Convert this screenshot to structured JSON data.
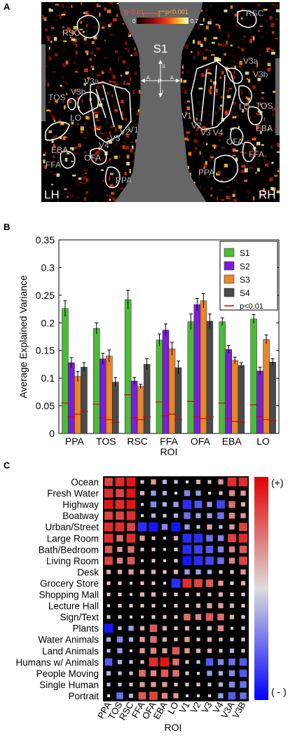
{
  "panel_a": {
    "letter": "A",
    "subject": "S1",
    "colorbar": {
      "min": "0",
      "max": "0.7",
      "p_low": "p<0.01",
      "p_high": "p<0.001"
    },
    "compass": {
      "s": "S",
      "a_left": "A",
      "p": "P",
      "a_right": "A",
      "i": "I"
    },
    "hemi_left": "LH",
    "hemi_right": "RH",
    "left_labels": [
      "RSC",
      "V3a",
      "V3b",
      "TOS",
      "LO",
      "EBA",
      "FFA",
      "OFA",
      "V4",
      "V3",
      "V2",
      "V1",
      "PPA"
    ],
    "right_labels": [
      "RSC",
      "V3a",
      "V3b",
      "TOS",
      "LO",
      "EBA",
      "FFA",
      "OFA",
      "V1",
      "V2",
      "V3",
      "V4",
      "PPA"
    ]
  },
  "chart_data": [
    {
      "type": "bar",
      "panel_letter": "B",
      "categories": [
        "PPA",
        "TOS",
        "RSC",
        "FFA",
        "OFA",
        "EBA",
        "LO"
      ],
      "xlabel": "ROI",
      "ylabel": "Average Explained Variance",
      "ylim": [
        0,
        0.35
      ],
      "yticks": [
        "0",
        "0.05",
        "0.1",
        "0.15",
        "0.2",
        "0.25",
        "0.3",
        "0.35"
      ],
      "legend_position": "top-right",
      "threshold_label": "p<0.01",
      "series": [
        {
          "name": "S1",
          "color": "#4dbb3a",
          "values": [
            0.226,
            0.19,
            0.242,
            0.169,
            0.202,
            0.202,
            0.207
          ],
          "err": [
            0.014,
            0.01,
            0.017,
            0.011,
            0.014,
            0.007,
            0.008
          ],
          "thresholds": [
            0.055,
            0.053,
            0.07,
            0.057,
            0.058,
            0.055,
            0.052
          ]
        },
        {
          "name": "S2",
          "color": "#7b1fd6",
          "values": [
            0.128,
            0.135,
            0.095,
            0.187,
            0.233,
            0.152,
            0.113
          ],
          "err": [
            0.009,
            0.01,
            0.006,
            0.011,
            0.011,
            0.007,
            0.007
          ],
          "thresholds": [
            0.03,
            0.028,
            0.028,
            0.032,
            0.03,
            0.027,
            0.03
          ]
        },
        {
          "name": "S3",
          "color": "#e8862a",
          "values": [
            0.103,
            0.14,
            0.085,
            0.153,
            0.24,
            0.132,
            0.17
          ],
          "err": [
            0.009,
            0.011,
            0.004,
            0.012,
            0.013,
            0.006,
            0.008
          ],
          "thresholds": [
            0.035,
            0.025,
            0.025,
            0.035,
            0.027,
            0.022,
            0.025
          ]
        },
        {
          "name": "S4",
          "color": "#4a4a4a",
          "values": [
            0.12,
            0.093,
            0.125,
            0.119,
            0.203,
            0.123,
            0.129
          ],
          "err": [
            0.008,
            0.008,
            0.01,
            0.012,
            0.013,
            0.005,
            0.006
          ],
          "thresholds": [
            0.04,
            0.02,
            0.03,
            0.025,
            0.03,
            0.02,
            0.023
          ]
        }
      ]
    },
    {
      "type": "heatmap",
      "panel_letter": "C",
      "xlabel": "ROI",
      "colorbar_top": "(+)",
      "colorbar_bottom": "( - )",
      "rows": [
        "Ocean",
        "Fresh Water",
        "Highway",
        "Boatway",
        "Urban/Street",
        "Large Room",
        "Bath/Bedroom",
        "Living Room",
        "Desk",
        "Grocery Store",
        "Shopping Mall",
        "Lecture Hall",
        "Sign/Text",
        "Plants",
        "Water Animals",
        "Land Animals",
        "Humans w/ Animals",
        "People Moving",
        "Single Human",
        "Portrait"
      ],
      "columns": [
        "PPA",
        "TOS",
        "RSC",
        "FFA",
        "OFA",
        "EBA",
        "LO",
        "V1",
        "V2",
        "V3",
        "V4",
        "V3A",
        "V3B"
      ],
      "values": [
        [
          0.7,
          0.8,
          0.9,
          0.1,
          0.3,
          -0.2,
          -0.1,
          0.0,
          0.2,
          0.1,
          0.3,
          0.8,
          0.8
        ],
        [
          0.8,
          0.7,
          0.9,
          0.2,
          -0.3,
          -0.2,
          0.0,
          -0.4,
          -0.3,
          0.0,
          0.1,
          0.4,
          0.3
        ],
        [
          0.9,
          0.8,
          0.9,
          0.0,
          -0.4,
          -0.2,
          -0.3,
          -0.8,
          -0.6,
          -0.3,
          -0.7,
          0.5,
          0.2
        ],
        [
          0.7,
          0.7,
          0.8,
          0.0,
          -0.2,
          -0.1,
          -0.2,
          -0.5,
          -0.3,
          -0.3,
          -0.5,
          0.4,
          0.3
        ],
        [
          0.8,
          0.8,
          0.7,
          -0.8,
          -0.9,
          -0.4,
          -0.9,
          -0.3,
          -0.1,
          0.3,
          -0.1,
          0.3,
          0.7
        ],
        [
          0.8,
          0.5,
          0.8,
          0.3,
          0.1,
          0.0,
          0.2,
          -0.8,
          -0.8,
          -0.5,
          -0.4,
          0.7,
          0.8
        ],
        [
          0.6,
          0.3,
          0.5,
          0.1,
          0.1,
          0.0,
          0.1,
          -0.8,
          -0.7,
          -0.6,
          -0.4,
          0.4,
          0.6
        ],
        [
          0.7,
          0.4,
          0.6,
          0.0,
          0.1,
          0.0,
          0.1,
          -0.9,
          -0.8,
          -0.7,
          -0.5,
          0.4,
          0.7
        ],
        [
          0.2,
          0.2,
          0.3,
          0.2,
          0.2,
          0.1,
          0.2,
          -0.3,
          -0.3,
          -0.2,
          0.1,
          0.1,
          0.3
        ],
        [
          0.1,
          0.1,
          0.0,
          0.1,
          0.1,
          0.0,
          -0.8,
          0.8,
          0.7,
          0.6,
          0.3,
          0.1,
          0.2
        ],
        [
          0.1,
          0.1,
          0.0,
          0.2,
          0.2,
          0.1,
          0.1,
          0.1,
          0.1,
          0.1,
          0.2,
          0.1,
          0.1
        ],
        [
          0.0,
          0.1,
          0.1,
          0.1,
          0.1,
          0.0,
          0.1,
          0.1,
          0.2,
          0.3,
          0.3,
          0.2,
          0.1
        ],
        [
          -0.1,
          -0.1,
          0.0,
          0.0,
          0.1,
          0.1,
          0.1,
          0.5,
          0.4,
          0.6,
          0.5,
          0.2,
          0.1
        ],
        [
          -0.9,
          -0.1,
          -0.3,
          0.2,
          0.6,
          0.2,
          0.1,
          0.2,
          0.1,
          0.2,
          0.4,
          0.0,
          -0.1
        ],
        [
          -0.2,
          -0.4,
          -0.2,
          0.3,
          0.5,
          0.2,
          0.1,
          0.3,
          0.1,
          0.2,
          0.1,
          -0.1,
          0.1
        ],
        [
          -0.1,
          -0.3,
          0.0,
          0.3,
          0.4,
          0.3,
          0.6,
          0.3,
          0.2,
          0.2,
          0.1,
          -0.2,
          0.1
        ],
        [
          -0.6,
          -0.2,
          -0.1,
          0.1,
          0.8,
          0.9,
          0.5,
          0.1,
          -0.1,
          -0.6,
          -0.4,
          -0.5,
          -0.6
        ],
        [
          -0.2,
          -0.1,
          -0.1,
          0.5,
          0.4,
          0.6,
          0.5,
          0.1,
          0.0,
          -0.3,
          -0.2,
          -0.4,
          -0.6
        ],
        [
          -0.1,
          -0.1,
          0.1,
          0.3,
          0.3,
          0.3,
          0.1,
          0.1,
          0.1,
          -0.1,
          -0.2,
          -0.4,
          -0.5
        ],
        [
          0.0,
          -0.5,
          -0.2,
          0.6,
          0.7,
          0.4,
          0.3,
          0.0,
          0.0,
          0.0,
          -0.3,
          -0.6,
          -0.5
        ]
      ]
    }
  ]
}
